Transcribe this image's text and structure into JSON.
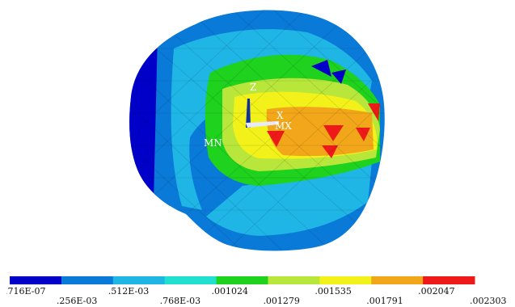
{
  "model": {
    "annotations": {
      "min_marker": "MN",
      "max_marker": "MX",
      "axis_z": "Z",
      "axis_x": "X"
    }
  },
  "legend": {
    "colors": [
      "#0000c8",
      "#0a7ad8",
      "#1fb6e6",
      "#22e0d0",
      "#1ed21e",
      "#b8e63a",
      "#f2f21a",
      "#f2a61a",
      "#ee1a1a"
    ],
    "labels": [
      ".716E-07",
      ".256E-03",
      ".512E-03",
      ".768E-03",
      ".001024",
      ".001279",
      ".001535",
      ".001791",
      ".002047",
      ".002303"
    ]
  }
}
